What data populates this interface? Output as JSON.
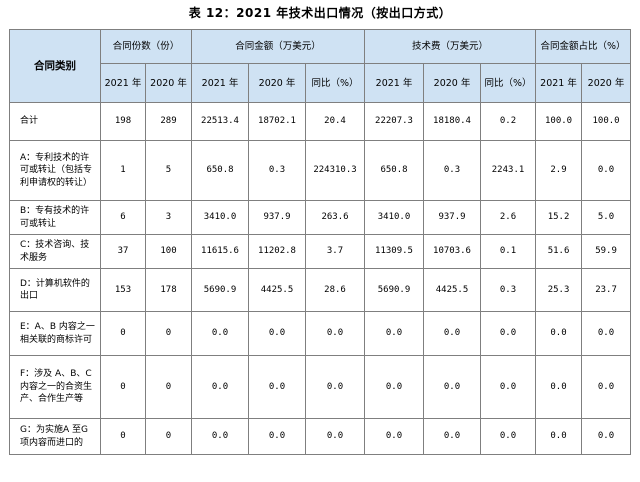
{
  "title": "表 12：2021 年技术出口情况（按出口方式）",
  "headers": {
    "category": "合同类别",
    "contract_count": "合同份数（份）",
    "contract_amount": "合同金额（万美元）",
    "tech_fee": "技术费（万美元）",
    "amount_share": "合同金额占比（%）",
    "y2021": "2021 年",
    "y2020": "2020 年",
    "yoy": "同比（%）"
  },
  "rows": [
    {
      "category": "合计",
      "count_2021": "198",
      "count_2020": "289",
      "amt_2021": "22513.4",
      "amt_2020": "18702.1",
      "amt_yoy": "20.4",
      "fee_2021": "22207.3",
      "fee_2020": "18180.4",
      "fee_yoy": "0.2",
      "share_2021": "100.0",
      "share_2020": "100.0"
    },
    {
      "category": "A：专利技术的许可或转让（包括专利申请权的转让）",
      "count_2021": "1",
      "count_2020": "5",
      "amt_2021": "650.8",
      "amt_2020": "0.3",
      "amt_yoy": "224310.3",
      "fee_2021": "650.8",
      "fee_2020": "0.3",
      "fee_yoy": "2243.1",
      "share_2021": "2.9",
      "share_2020": "0.0"
    },
    {
      "category": "B：专有技术的许可或转让",
      "count_2021": "6",
      "count_2020": "3",
      "amt_2021": "3410.0",
      "amt_2020": "937.9",
      "amt_yoy": "263.6",
      "fee_2021": "3410.0",
      "fee_2020": "937.9",
      "fee_yoy": "2.6",
      "share_2021": "15.2",
      "share_2020": "5.0"
    },
    {
      "category": "C：技术咨询、技术服务",
      "count_2021": "37",
      "count_2020": "100",
      "amt_2021": "11615.6",
      "amt_2020": "11202.8",
      "amt_yoy": "3.7",
      "fee_2021": "11309.5",
      "fee_2020": "10703.6",
      "fee_yoy": "0.1",
      "share_2021": "51.6",
      "share_2020": "59.9"
    },
    {
      "category": "D：计算机软件的出口",
      "count_2021": "153",
      "count_2020": "178",
      "amt_2021": "5690.9",
      "amt_2020": "4425.5",
      "amt_yoy": "28.6",
      "fee_2021": "5690.9",
      "fee_2020": "4425.5",
      "fee_yoy": "0.3",
      "share_2021": "25.3",
      "share_2020": "23.7"
    },
    {
      "category": "E：A、B 内容之一相关联的商标许可",
      "count_2021": "0",
      "count_2020": "0",
      "amt_2021": "0.0",
      "amt_2020": "0.0",
      "amt_yoy": "0.0",
      "fee_2021": "0.0",
      "fee_2020": "0.0",
      "fee_yoy": "0.0",
      "share_2021": "0.0",
      "share_2020": "0.0"
    },
    {
      "category": "F：涉及 A、B、C 内容之一的合资生产、合作生产等",
      "count_2021": "0",
      "count_2020": "0",
      "amt_2021": "0.0",
      "amt_2020": "0.0",
      "amt_yoy": "0.0",
      "fee_2021": "0.0",
      "fee_2020": "0.0",
      "fee_yoy": "0.0",
      "share_2021": "0.0",
      "share_2020": "0.0"
    },
    {
      "category": "G：为实施A 至G 项内容而进口的",
      "count_2021": "0",
      "count_2020": "0",
      "amt_2021": "0.0",
      "amt_2020": "0.0",
      "amt_yoy": "0.0",
      "fee_2021": "0.0",
      "fee_2020": "0.0",
      "fee_yoy": "0.0",
      "share_2021": "0.0",
      "share_2020": "0.0"
    }
  ]
}
